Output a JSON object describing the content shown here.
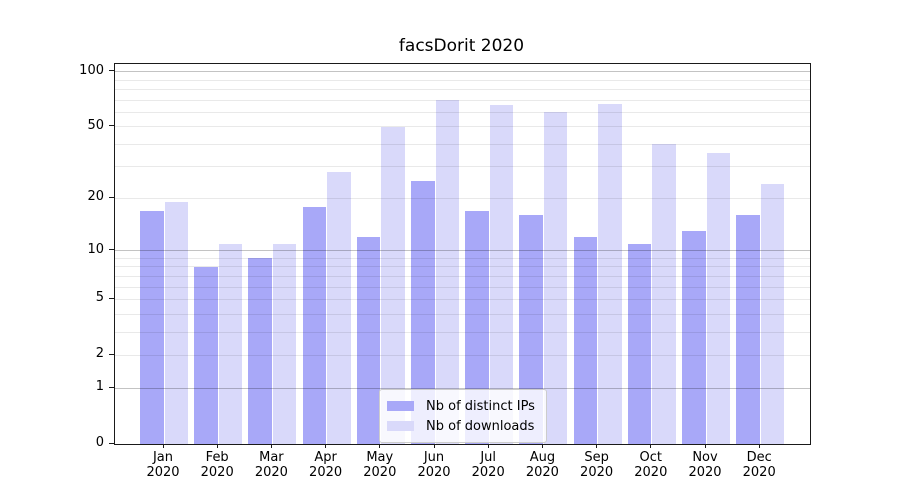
{
  "chart_data": {
    "type": "bar",
    "title": "facsDorit 2020",
    "categories": [
      "Jan 2020",
      "Feb 2020",
      "Mar 2020",
      "Apr 2020",
      "May 2020",
      "Jun 2020",
      "Jul 2020",
      "Aug 2020",
      "Sep 2020",
      "Oct 2020",
      "Nov 2020",
      "Dec 2020"
    ],
    "x_tick_month_labels": [
      "Jan",
      "Feb",
      "Mar",
      "Apr",
      "May",
      "Jun",
      "Jul",
      "Aug",
      "Sep",
      "Oct",
      "Nov",
      "Dec"
    ],
    "x_tick_year_label": "2020",
    "series": [
      {
        "name": "Nb of distinct IPs",
        "color": "#a8a8f8",
        "values": [
          17,
          8,
          9,
          18,
          12,
          25,
          17,
          16,
          12,
          11,
          13,
          16
        ]
      },
      {
        "name": "Nb of downloads",
        "color": "#d9d9fa",
        "values": [
          19,
          11,
          11,
          28,
          50,
          70,
          66,
          60,
          67,
          40,
          36,
          24
        ]
      }
    ],
    "xlabel": "",
    "ylabel": "",
    "yscale": "log1p",
    "ylim": [
      0,
      111
    ],
    "yticks": [
      0,
      1,
      2,
      5,
      10,
      20,
      50,
      100
    ],
    "grid": {
      "orientation": "horizontal",
      "major_values": [
        1,
        10,
        100
      ],
      "minor_values": [
        2,
        3,
        4,
        5,
        6,
        7,
        8,
        9,
        20,
        30,
        40,
        50,
        60,
        70,
        80,
        90
      ],
      "major_color": "#c3c3c3",
      "minor_color": "#e8e8e8"
    },
    "legend": {
      "position": "lower-center-inside",
      "entries": [
        "Nb of distinct IPs",
        "Nb of downloads"
      ]
    }
  }
}
